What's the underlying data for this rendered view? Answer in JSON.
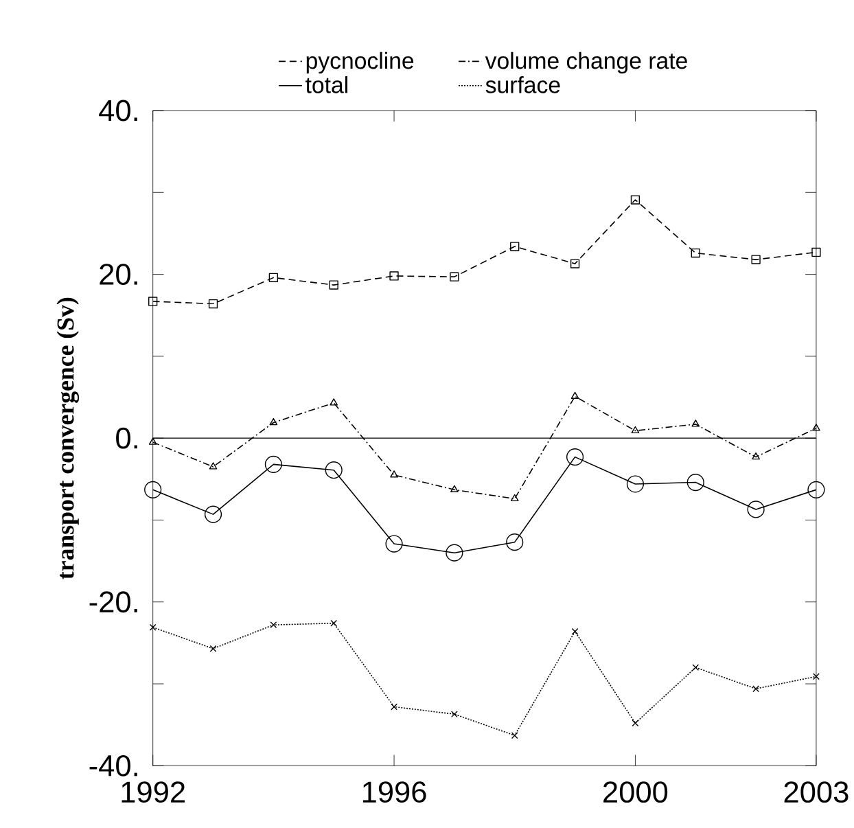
{
  "chart_data": {
    "type": "line",
    "ylabel": "transport convergence (Sv)",
    "x": [
      1992,
      1993,
      1994,
      1995,
      1996,
      1997,
      1998,
      1999,
      2000,
      2001,
      2002,
      2003
    ],
    "series": [
      {
        "name": "pycnocline",
        "color": "#000000",
        "marker": "square",
        "line_style": "dashed",
        "values": [
          16.7,
          16.4,
          19.6,
          18.7,
          19.8,
          19.7,
          23.4,
          21.3,
          29.1,
          22.6,
          21.8,
          22.7
        ]
      },
      {
        "name": "volume change rate",
        "color": "#000000",
        "marker": "triangle",
        "line_style": "dashdot",
        "values": [
          -0.5,
          -3.5,
          1.9,
          4.3,
          -4.5,
          -6.3,
          -7.4,
          5.1,
          0.9,
          1.7,
          -2.3,
          1.2
        ]
      },
      {
        "name": "total",
        "color": "#000000",
        "marker": "circle",
        "line_style": "solid",
        "values": [
          -6.3,
          -9.3,
          -3.2,
          -3.9,
          -12.9,
          -14.0,
          -12.7,
          -2.3,
          -5.6,
          -5.4,
          -8.7,
          -6.3
        ]
      },
      {
        "name": "surface",
        "color": "#000000",
        "marker": "cross",
        "line_style": "dotted",
        "values": [
          -23.1,
          -25.7,
          -22.8,
          -22.6,
          -32.8,
          -33.7,
          -36.3,
          -23.6,
          -34.8,
          -28.0,
          -30.6,
          -29.1
        ]
      }
    ],
    "xlim": [
      1992,
      2003
    ],
    "xticks": [
      1992,
      1996,
      2000,
      2003
    ],
    "ylim": [
      -40,
      40
    ],
    "yticks": [
      {
        "value": -40,
        "label": "-40."
      },
      {
        "value": -30,
        "label": null
      },
      {
        "value": -20,
        "label": "-20."
      },
      {
        "value": -10,
        "label": null
      },
      {
        "value": 0,
        "label": "0."
      },
      {
        "value": 10,
        "label": null
      },
      {
        "value": 20,
        "label": "20."
      },
      {
        "value": 30,
        "label": null
      },
      {
        "value": 40,
        "label": "40."
      }
    ],
    "ref_lines": [
      {
        "axis": "y",
        "value": 0,
        "color": "#000000"
      }
    ],
    "grid": false,
    "legend": "top"
  }
}
